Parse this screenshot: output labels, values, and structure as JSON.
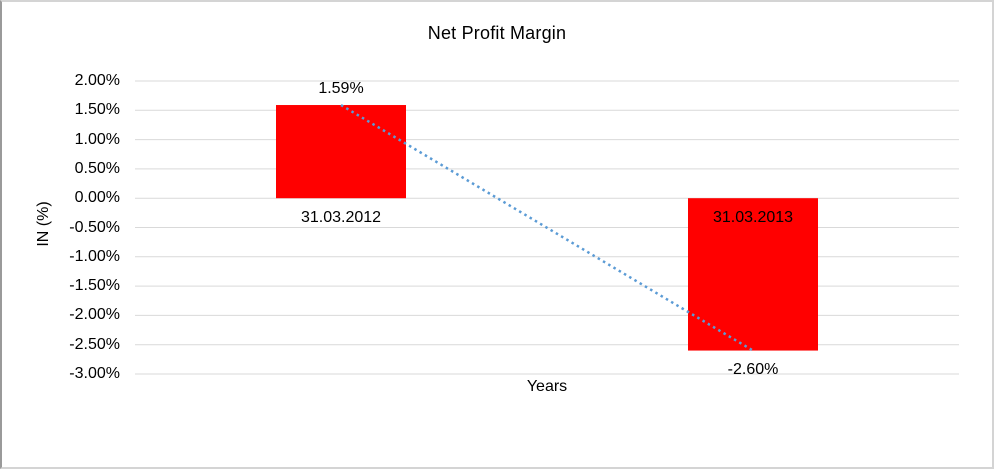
{
  "chart_data": {
    "type": "bar",
    "title": "Net Profit Margin",
    "xlabel": "Years",
    "ylabel": "IN (%)",
    "categories": [
      "31.03.2012",
      "31.03.2013"
    ],
    "series": [
      {
        "name": "Net Profit Margin",
        "values": [
          1.59,
          -2.6
        ]
      }
    ],
    "values": [
      1.59,
      -2.6
    ],
    "value_labels": [
      "1.59%",
      "-2.60%"
    ],
    "ylim": [
      -3.0,
      2.0
    ],
    "ytick_step": 0.5,
    "ytick_labels": [
      "2.00%",
      "1.50%",
      "1.00%",
      "0.50%",
      "0.00%",
      "-0.50%",
      "-1.00%",
      "-1.50%",
      "-2.00%",
      "-2.50%",
      "-3.00%"
    ],
    "gridlines": true,
    "legend": "none",
    "trendline": {
      "type": "linear",
      "style": "dotted",
      "from": [
        0,
        1.59
      ],
      "to": [
        1,
        -2.6
      ]
    },
    "colors": {
      "bar": "#ff0000",
      "trendline": "#5b9bd5",
      "gridline": "#d9d9d9",
      "text": "#000000"
    }
  }
}
